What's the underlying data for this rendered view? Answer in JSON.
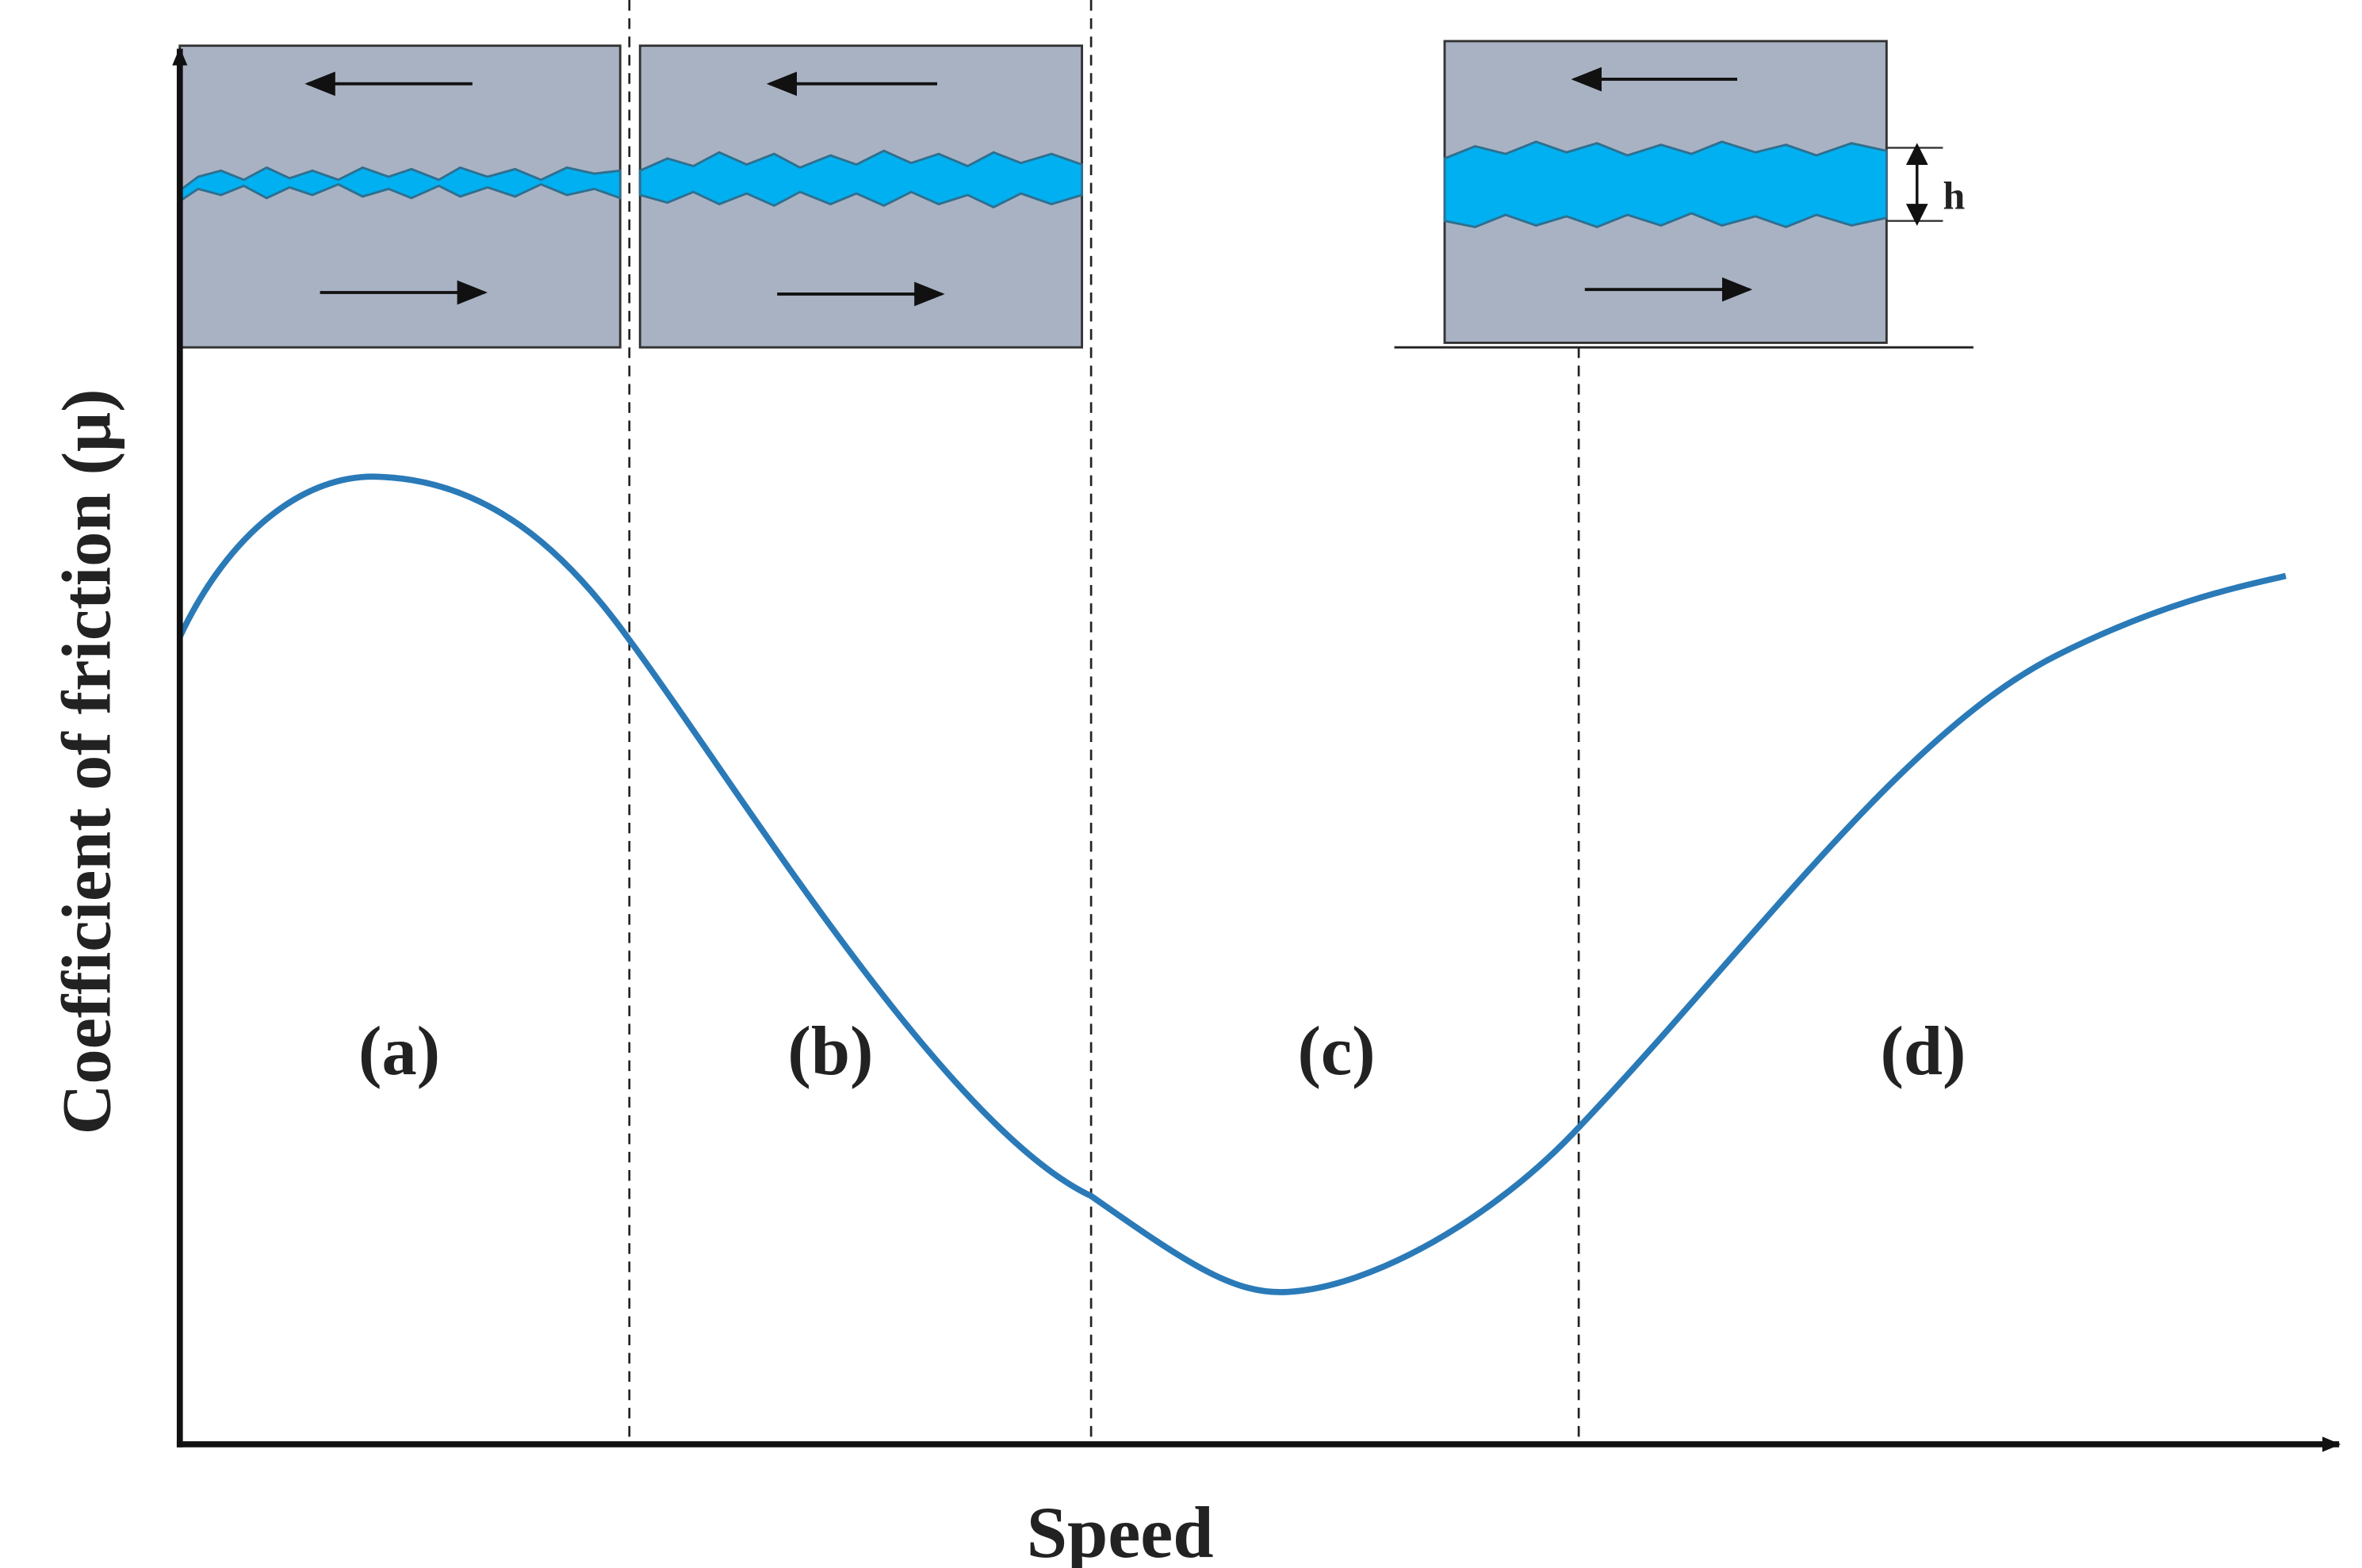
{
  "axes": {
    "y_label": "Coefficient of friction (μ)",
    "x_label": "Speed"
  },
  "regions": [
    "(a)",
    "(b)",
    "(c)",
    "(d)"
  ],
  "film_thickness_label": "h"
}
